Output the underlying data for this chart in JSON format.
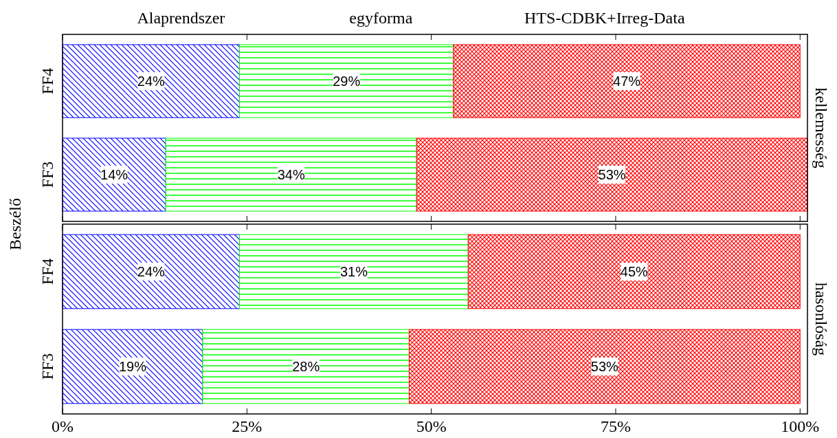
{
  "chart_data": [
    {
      "type": "bar",
      "orientation": "horizontal",
      "stacked": true,
      "title": "kellemesség",
      "ylabel": "Beszélő",
      "legend": "top",
      "tick_labels": "y",
      "categories": [
        "FF4",
        "FF3"
      ],
      "xlim": [
        0,
        101
      ],
      "xticks": [
        {
          "value": 0,
          "label": null
        },
        {
          "value": 25,
          "label": null
        },
        {
          "value": 50,
          "label": null
        },
        {
          "value": 75,
          "label": null
        },
        {
          "value": 100,
          "label": null
        }
      ],
      "series": [
        {
          "name": "Alaprendszer",
          "color": "#0000ff",
          "values": [
            24,
            14
          ],
          "value_labels": [
            "24%",
            "14%"
          ]
        },
        {
          "name": "egyforma",
          "color": "#00ff00",
          "values": [
            29,
            34
          ],
          "value_labels": [
            "29%",
            "34%"
          ]
        },
        {
          "name": "HTS-CDBK+Irreg-Data",
          "color": "#ff0000",
          "values": [
            47,
            53
          ],
          "value_labels": [
            "47%",
            "53%"
          ]
        }
      ]
    },
    {
      "type": "bar",
      "orientation": "horizontal",
      "stacked": true,
      "title": "hasonlóság",
      "categories": [
        "FF4",
        "FF3"
      ],
      "xlim": [
        0,
        101
      ],
      "xticks": [
        {
          "value": 0,
          "label": "0%"
        },
        {
          "value": 25,
          "label": "25%"
        },
        {
          "value": 50,
          "label": "50%"
        },
        {
          "value": 75,
          "label": "75%"
        },
        {
          "value": 100,
          "label": "100%"
        }
      ],
      "series": [
        {
          "color": "#0000ff",
          "values": [
            24,
            19
          ],
          "value_labels": [
            "24%",
            "19%"
          ]
        },
        {
          "color": "#00ff00",
          "values": [
            31,
            28
          ],
          "value_labels": [
            "31%",
            "28%"
          ]
        },
        {
          "color": "#ff0000",
          "values": [
            45,
            53
          ],
          "value_labels": [
            "45%",
            "53%"
          ]
        }
      ]
    }
  ]
}
